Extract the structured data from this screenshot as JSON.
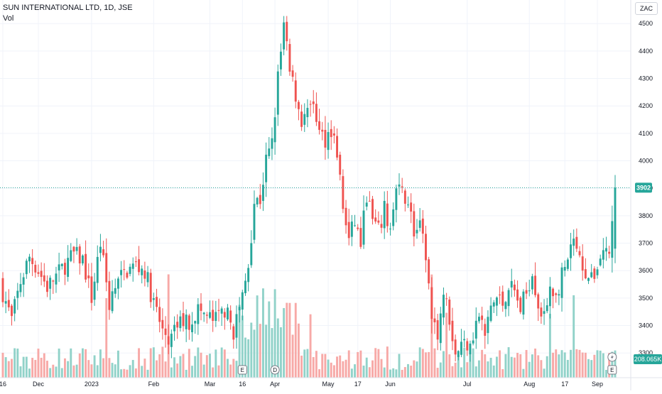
{
  "header": {
    "title": "SUN INTERNATIONAL LTD, 1D, JSE",
    "vol_label": "Vol"
  },
  "price_axis": {
    "currency": "ZAC",
    "ticks": [
      3300,
      3400,
      3500,
      3600,
      3700,
      3800,
      3900,
      4000,
      4100,
      4200,
      4300,
      4400,
      4500
    ],
    "last_price_label": "3902",
    "last_volume_label": "208.065K"
  },
  "time_axis": {
    "labels": [
      {
        "text": "16",
        "i": 0
      },
      {
        "text": "Dec",
        "i": 12
      },
      {
        "text": "2023",
        "i": 30
      },
      {
        "text": "Feb",
        "i": 51
      },
      {
        "text": "Mar",
        "i": 70
      },
      {
        "text": "16",
        "i": 81
      },
      {
        "text": "Apr",
        "i": 92
      },
      {
        "text": "May",
        "i": 110
      },
      {
        "text": "17",
        "i": 120
      },
      {
        "text": "Jun",
        "i": 131
      },
      {
        "text": "Jul",
        "i": 157
      },
      {
        "text": "Aug",
        "i": 178
      },
      {
        "text": "17",
        "i": 190
      },
      {
        "text": "Sep",
        "i": 201
      }
    ]
  },
  "markers": [
    {
      "text": "E",
      "i": 81
    },
    {
      "text": "D",
      "i": 92
    },
    {
      "text": "E",
      "i": 206
    }
  ],
  "colors": {
    "up": "#26a69a",
    "down": "#ef5350",
    "vol_up": "#91d2c9",
    "vol_down": "#f7a9a7",
    "last_price": "#26a69a"
  },
  "chart_data": {
    "type": "candlestick",
    "y_unit": "ZAC",
    "ylim": [
      3210,
      4560
    ],
    "current_price": 3902,
    "close_path": [
      [
        0,
        3520
      ],
      [
        3,
        3420
      ],
      [
        6,
        3560
      ],
      [
        9,
        3650
      ],
      [
        12,
        3600
      ],
      [
        15,
        3540
      ],
      [
        18,
        3580
      ],
      [
        21,
        3620
      ],
      [
        24,
        3660
      ],
      [
        27,
        3640
      ],
      [
        30,
        3500
      ],
      [
        33,
        3700
      ],
      [
        36,
        3480
      ],
      [
        39,
        3560
      ],
      [
        42,
        3600
      ],
      [
        45,
        3620
      ],
      [
        48,
        3600
      ],
      [
        51,
        3480
      ],
      [
        54,
        3380
      ],
      [
        57,
        3350
      ],
      [
        60,
        3420
      ],
      [
        63,
        3410
      ],
      [
        66,
        3460
      ],
      [
        69,
        3430
      ],
      [
        72,
        3420
      ],
      [
        75,
        3460
      ],
      [
        78,
        3380
      ],
      [
        81,
        3500
      ],
      [
        83,
        3620
      ],
      [
        85,
        3850
      ],
      [
        87,
        3860
      ],
      [
        89,
        4000
      ],
      [
        91,
        4060
      ],
      [
        93,
        4300
      ],
      [
        95,
        4490
      ],
      [
        97,
        4320
      ],
      [
        99,
        4240
      ],
      [
        101,
        4150
      ],
      [
        103,
        4180
      ],
      [
        105,
        4220
      ],
      [
        107,
        4100
      ],
      [
        109,
        4080
      ],
      [
        111,
        4120
      ],
      [
        113,
        4030
      ],
      [
        115,
        3830
      ],
      [
        117,
        3710
      ],
      [
        119,
        3780
      ],
      [
        121,
        3700
      ],
      [
        123,
        3880
      ],
      [
        125,
        3780
      ],
      [
        127,
        3740
      ],
      [
        129,
        3820
      ],
      [
        131,
        3750
      ],
      [
        133,
        3890
      ],
      [
        135,
        3880
      ],
      [
        137,
        3860
      ],
      [
        139,
        3740
      ],
      [
        141,
        3750
      ],
      [
        143,
        3660
      ],
      [
        145,
        3420
      ],
      [
        147,
        3380
      ],
      [
        149,
        3520
      ],
      [
        151,
        3430
      ],
      [
        153,
        3300
      ],
      [
        155,
        3330
      ],
      [
        157,
        3340
      ],
      [
        159,
        3370
      ],
      [
        161,
        3440
      ],
      [
        163,
        3360
      ],
      [
        165,
        3470
      ],
      [
        167,
        3500
      ],
      [
        169,
        3480
      ],
      [
        171,
        3550
      ],
      [
        173,
        3520
      ],
      [
        175,
        3460
      ],
      [
        177,
        3520
      ],
      [
        179,
        3600
      ],
      [
        181,
        3480
      ],
      [
        183,
        3420
      ],
      [
        185,
        3560
      ],
      [
        187,
        3500
      ],
      [
        189,
        3580
      ],
      [
        191,
        3630
      ],
      [
        193,
        3700
      ],
      [
        195,
        3640
      ],
      [
        197,
        3600
      ],
      [
        199,
        3560
      ],
      [
        201,
        3620
      ],
      [
        203,
        3680
      ],
      [
        205,
        3660
      ],
      [
        207,
        3902
      ]
    ],
    "n_bars": 208,
    "note_values": "OHLC and volume values estimated from the screenshot"
  }
}
